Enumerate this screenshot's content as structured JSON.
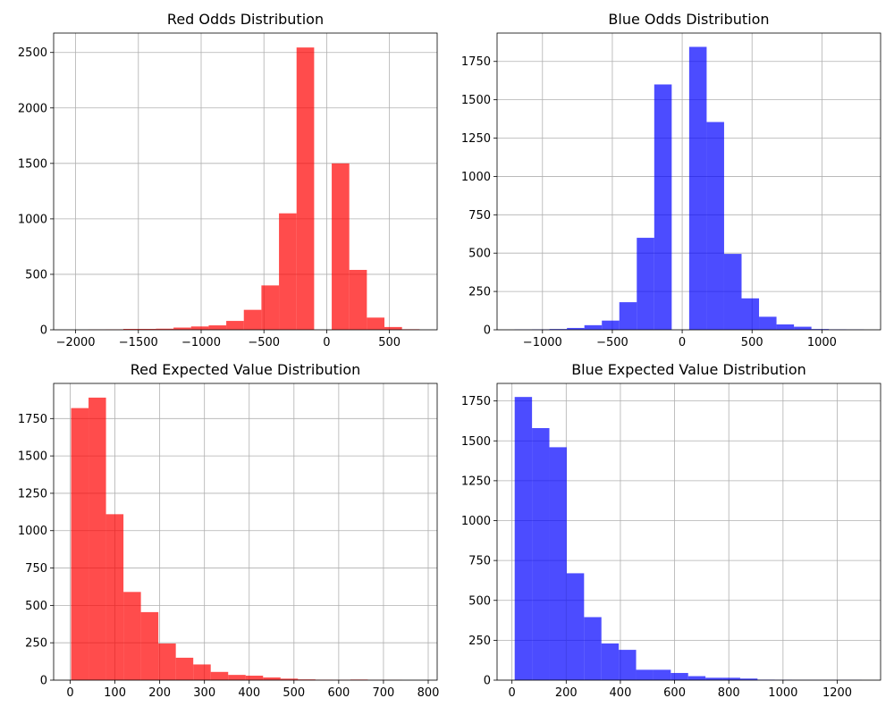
{
  "chart_data": [
    {
      "type": "bar",
      "title": "Red Odds Distribution",
      "xlabel": "",
      "ylabel": "",
      "color": "#ff0000",
      "opacity": 0.7,
      "grid": true,
      "xlim": [
        -2175,
        880
      ],
      "ylim": [
        0,
        2675
      ],
      "xticks": [
        -2000,
        -1500,
        -1000,
        -500,
        0,
        500
      ],
      "xtick_labels": [
        "−2000",
        "−1500",
        "−1000",
        "−500",
        "0",
        "500"
      ],
      "yticks": [
        0,
        500,
        1000,
        1500,
        2000,
        2500
      ],
      "ytick_labels": [
        "0",
        "500",
        "1000",
        "1500",
        "2000",
        "2500"
      ],
      "bins": [
        {
          "x0": -2040,
          "x1": -1900,
          "value": 0
        },
        {
          "x0": -1900,
          "x1": -1760,
          "value": 2
        },
        {
          "x0": -1760,
          "x1": -1620,
          "value": 4
        },
        {
          "x0": -1620,
          "x1": -1360,
          "value": 8
        },
        {
          "x0": -1360,
          "x1": -1220,
          "value": 10
        },
        {
          "x0": -1220,
          "x1": -1080,
          "value": 20
        },
        {
          "x0": -1080,
          "x1": -940,
          "value": 30
        },
        {
          "x0": -940,
          "x1": -800,
          "value": 40
        },
        {
          "x0": -800,
          "x1": -660,
          "value": 80
        },
        {
          "x0": -660,
          "x1": -520,
          "value": 180
        },
        {
          "x0": -520,
          "x1": -380,
          "value": 400
        },
        {
          "x0": -380,
          "x1": -240,
          "value": 1050
        },
        {
          "x0": -240,
          "x1": -100,
          "value": 2545
        },
        {
          "x0": -100,
          "x1": 40,
          "value": 0
        },
        {
          "x0": 40,
          "x1": 180,
          "value": 1500
        },
        {
          "x0": 180,
          "x1": 320,
          "value": 540
        },
        {
          "x0": 320,
          "x1": 460,
          "value": 110
        },
        {
          "x0": 460,
          "x1": 600,
          "value": 25
        },
        {
          "x0": 600,
          "x1": 740,
          "value": 5
        }
      ]
    },
    {
      "type": "bar",
      "title": "Blue Odds Distribution",
      "xlabel": "",
      "ylabel": "",
      "color": "#0000ff",
      "opacity": 0.7,
      "grid": true,
      "xlim": [
        -1325,
        1420
      ],
      "ylim": [
        0,
        1935
      ],
      "xticks": [
        -1000,
        -500,
        0,
        500,
        1000
      ],
      "xtick_labels": [
        "−1000",
        "−500",
        "0",
        "500",
        "1000"
      ],
      "yticks": [
        0,
        250,
        500,
        750,
        1000,
        1250,
        1500,
        1750
      ],
      "ytick_labels": [
        "0",
        "250",
        "500",
        "750",
        "1000",
        "1250",
        "1500",
        "1750"
      ],
      "bins": [
        {
          "x0": -1200,
          "x1": -1075,
          "value": 2
        },
        {
          "x0": -1075,
          "x1": -950,
          "value": 3
        },
        {
          "x0": -950,
          "x1": -825,
          "value": 5
        },
        {
          "x0": -825,
          "x1": -700,
          "value": 12
        },
        {
          "x0": -700,
          "x1": -575,
          "value": 30
        },
        {
          "x0": -575,
          "x1": -450,
          "value": 60
        },
        {
          "x0": -450,
          "x1": -325,
          "value": 180
        },
        {
          "x0": -325,
          "x1": -200,
          "value": 600
        },
        {
          "x0": -200,
          "x1": -75,
          "value": 1600
        },
        {
          "x0": -75,
          "x1": 50,
          "value": 0
        },
        {
          "x0": 50,
          "x1": 175,
          "value": 1845
        },
        {
          "x0": 175,
          "x1": 300,
          "value": 1355
        },
        {
          "x0": 300,
          "x1": 425,
          "value": 495
        },
        {
          "x0": 425,
          "x1": 550,
          "value": 205
        },
        {
          "x0": 550,
          "x1": 675,
          "value": 85
        },
        {
          "x0": 675,
          "x1": 800,
          "value": 35
        },
        {
          "x0": 800,
          "x1": 925,
          "value": 20
        },
        {
          "x0": 925,
          "x1": 1050,
          "value": 5
        },
        {
          "x0": 1050,
          "x1": 1175,
          "value": 3
        },
        {
          "x0": 1175,
          "x1": 1300,
          "value": 2
        }
      ]
    },
    {
      "type": "bar",
      "title": "Red Expected Value Distribution",
      "xlabel": "",
      "ylabel": "",
      "color": "#ff0000",
      "opacity": 0.7,
      "grid": true,
      "xlim": [
        -37,
        820
      ],
      "ylim": [
        0,
        1985
      ],
      "xticks": [
        0,
        100,
        200,
        300,
        400,
        500,
        600,
        700,
        800
      ],
      "xtick_labels": [
        "0",
        "100",
        "200",
        "300",
        "400",
        "500",
        "600",
        "700",
        "800"
      ],
      "yticks": [
        0,
        250,
        500,
        750,
        1000,
        1250,
        1500,
        1750
      ],
      "ytick_labels": [
        "0",
        "250",
        "500",
        "750",
        "1000",
        "1250",
        "1500",
        "1750"
      ],
      "bins": [
        {
          "x0": 2,
          "x1": 41,
          "value": 1820
        },
        {
          "x0": 41,
          "x1": 80,
          "value": 1890
        },
        {
          "x0": 80,
          "x1": 119,
          "value": 1110
        },
        {
          "x0": 119,
          "x1": 158,
          "value": 590
        },
        {
          "x0": 158,
          "x1": 197,
          "value": 455
        },
        {
          "x0": 197,
          "x1": 236,
          "value": 245
        },
        {
          "x0": 236,
          "x1": 275,
          "value": 150
        },
        {
          "x0": 275,
          "x1": 314,
          "value": 105
        },
        {
          "x0": 314,
          "x1": 353,
          "value": 55
        },
        {
          "x0": 353,
          "x1": 392,
          "value": 35
        },
        {
          "x0": 392,
          "x1": 431,
          "value": 30
        },
        {
          "x0": 431,
          "x1": 470,
          "value": 18
        },
        {
          "x0": 470,
          "x1": 509,
          "value": 10
        },
        {
          "x0": 509,
          "x1": 548,
          "value": 5
        },
        {
          "x0": 548,
          "x1": 587,
          "value": 3
        },
        {
          "x0": 587,
          "x1": 626,
          "value": 2
        },
        {
          "x0": 626,
          "x1": 665,
          "value": 4
        },
        {
          "x0": 665,
          "x1": 704,
          "value": 1
        },
        {
          "x0": 704,
          "x1": 743,
          "value": 1
        },
        {
          "x0": 743,
          "x1": 782,
          "value": 0
        }
      ]
    },
    {
      "type": "bar",
      "title": "Blue Expected Value Distribution",
      "xlabel": "",
      "ylabel": "",
      "color": "#0000ff",
      "opacity": 0.7,
      "grid": true,
      "xlim": [
        -55,
        1360
      ],
      "ylim": [
        0,
        1860
      ],
      "xticks": [
        0,
        200,
        400,
        600,
        800,
        1000,
        1200
      ],
      "xtick_labels": [
        "0",
        "200",
        "400",
        "600",
        "800",
        "1000",
        "1200"
      ],
      "yticks": [
        0,
        250,
        500,
        750,
        1000,
        1250,
        1500,
        1750
      ],
      "ytick_labels": [
        "0",
        "250",
        "500",
        "750",
        "1000",
        "1250",
        "1500",
        "1750"
      ],
      "bins": [
        {
          "x0": 10,
          "x1": 74,
          "value": 1775
        },
        {
          "x0": 74,
          "x1": 138,
          "value": 1580
        },
        {
          "x0": 138,
          "x1": 202,
          "value": 1460
        },
        {
          "x0": 202,
          "x1": 266,
          "value": 670
        },
        {
          "x0": 266,
          "x1": 330,
          "value": 395
        },
        {
          "x0": 330,
          "x1": 394,
          "value": 230
        },
        {
          "x0": 394,
          "x1": 458,
          "value": 190
        },
        {
          "x0": 458,
          "x1": 522,
          "value": 65
        },
        {
          "x0": 522,
          "x1": 586,
          "value": 65
        },
        {
          "x0": 586,
          "x1": 650,
          "value": 45
        },
        {
          "x0": 650,
          "x1": 714,
          "value": 25
        },
        {
          "x0": 714,
          "x1": 778,
          "value": 15
        },
        {
          "x0": 778,
          "x1": 842,
          "value": 15
        },
        {
          "x0": 842,
          "x1": 906,
          "value": 10
        },
        {
          "x0": 906,
          "x1": 970,
          "value": 3
        },
        {
          "x0": 970,
          "x1": 1034,
          "value": 2
        },
        {
          "x0": 1034,
          "x1": 1098,
          "value": 1
        },
        {
          "x0": 1098,
          "x1": 1162,
          "value": 1
        },
        {
          "x0": 1162,
          "x1": 1226,
          "value": 1
        },
        {
          "x0": 1226,
          "x1": 1290,
          "value": 1
        }
      ]
    }
  ]
}
